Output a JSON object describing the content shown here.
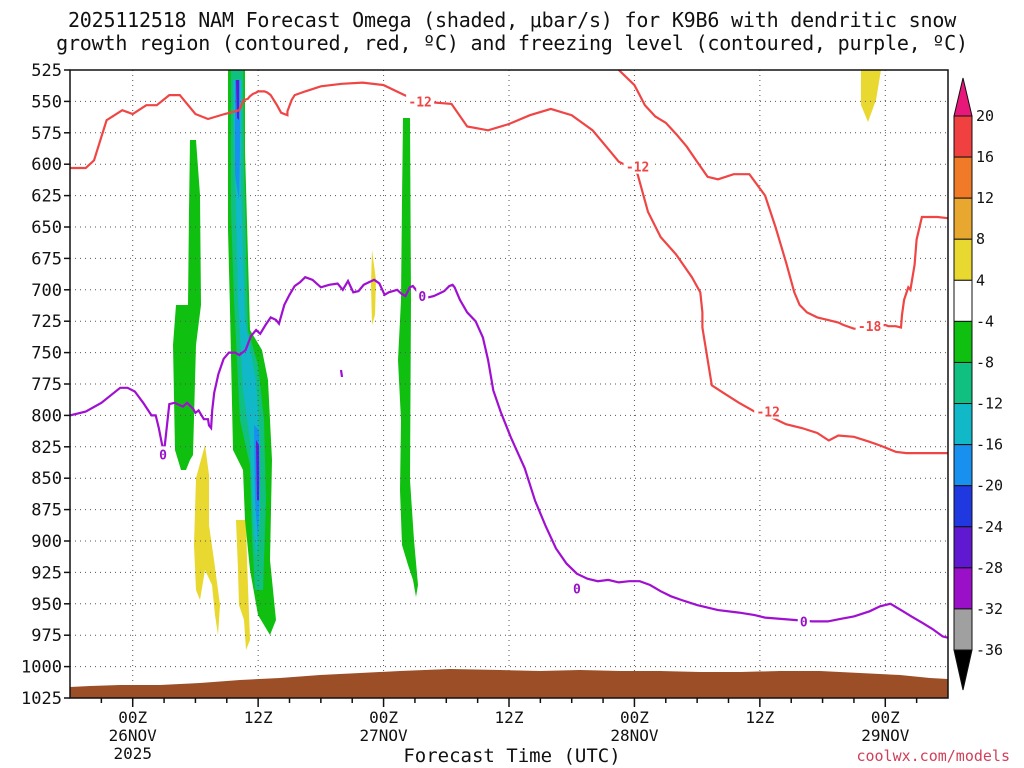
{
  "title_line1": "2025112518 NAM Forecast Omega (shaded, μbar/s) for K9B6 with dendritic snow",
  "title_line2": "growth region (contoured, red, ºC) and freezing level (contoured, purple, ºC)",
  "credit": "coolwx.com/models",
  "chart_data": {
    "type": "contour",
    "xlabel": "Forecast Time (UTC)",
    "ylabel": "",
    "x_range_hours_from_2025112518": [
      0,
      84
    ],
    "y_range_hPa": [
      525,
      1025
    ],
    "y_ticks": [
      "525",
      "550",
      "575",
      "600",
      "625",
      "650",
      "675",
      "700",
      "725",
      "750",
      "775",
      "800",
      "825",
      "850",
      "875",
      "900",
      "925",
      "950",
      "975",
      "1000",
      "1025"
    ],
    "x_ticks": [
      {
        "h": 6,
        "lines": [
          "00Z",
          "26NOV",
          "2025"
        ]
      },
      {
        "h": 18,
        "lines": [
          "12Z"
        ]
      },
      {
        "h": 30,
        "lines": [
          "00Z",
          "27NOV"
        ]
      },
      {
        "h": 42,
        "lines": [
          "12Z"
        ]
      },
      {
        "h": 54,
        "lines": [
          "00Z",
          "28NOV"
        ]
      },
      {
        "h": 66,
        "lines": [
          "12Z"
        ]
      },
      {
        "h": 78,
        "lines": [
          "00Z",
          "29NOV"
        ]
      }
    ],
    "colorbar": {
      "labels": [
        "20",
        "16",
        "12",
        "8",
        "4",
        "-4",
        "-8",
        "-12",
        "-16",
        "-20",
        "-24",
        "-28",
        "-32",
        "-36"
      ],
      "colors": [
        "#e8177a",
        "#f04040",
        "#f07a28",
        "#e8a830",
        "#e8d830",
        "#ffffff",
        "#10c010",
        "#10c080",
        "#10b8c8",
        "#1890f0",
        "#2038e0",
        "#6018d0",
        "#9a10c8",
        "#a0a0a0",
        "#000000"
      ]
    },
    "contour_labels": [
      {
        "text": "-12",
        "color": "#f04545",
        "h": 33.5,
        "p": 550
      },
      {
        "text": "-12",
        "color": "#f04545",
        "h": 54.3,
        "p": 602
      },
      {
        "text": "-18",
        "color": "#f04545",
        "h": 76.5,
        "p": 729
      },
      {
        "text": "-12",
        "color": "#f04545",
        "h": 66.8,
        "p": 797
      },
      {
        "text": "0",
        "color": "#9a10c8",
        "h": 33.7,
        "p": 705
      },
      {
        "text": "0",
        "color": "#9a10c8",
        "h": 8.9,
        "p": 831
      },
      {
        "text": "0",
        "color": "#9a10c8",
        "h": 48.5,
        "p": 938
      },
      {
        "text": "0",
        "color": "#9a10c8",
        "h": 70.2,
        "p": 964
      }
    ],
    "series": [
      {
        "name": "",
        "color": "#f04545",
        "points": [
          [
            0,
            603
          ],
          [
            1.5,
            603
          ],
          [
            2.3,
            597
          ],
          [
            3.5,
            565
          ],
          [
            5,
            557
          ],
          [
            6,
            560
          ],
          [
            7.3,
            553
          ],
          [
            8.3,
            553
          ],
          [
            9.5,
            545
          ],
          [
            10.5,
            545
          ],
          [
            12,
            560
          ],
          [
            13.2,
            564
          ],
          [
            14.8,
            560
          ],
          [
            16.2,
            557
          ],
          [
            16.6,
            549
          ],
          [
            17,
            548
          ],
          [
            17.2,
            546
          ],
          [
            17.5,
            544
          ],
          [
            17.8,
            543
          ],
          [
            18,
            542
          ],
          [
            18.3,
            542
          ],
          [
            18.6,
            542
          ],
          [
            18.9,
            543
          ],
          [
            19.2,
            545
          ],
          [
            19.5,
            549
          ],
          [
            19.8,
            553
          ],
          [
            20.2,
            559
          ],
          [
            20.5,
            560
          ],
          [
            20.8,
            561
          ],
          [
            20.8,
            558
          ],
          [
            21.2,
            549
          ],
          [
            21.5,
            545
          ],
          [
            22.5,
            542
          ],
          [
            24,
            538
          ],
          [
            26,
            536
          ],
          [
            28,
            535
          ],
          [
            30,
            537
          ],
          [
            32,
            545
          ],
          [
            33.5,
            550
          ],
          [
            36.5,
            552
          ],
          [
            38,
            570
          ],
          [
            40,
            573
          ],
          [
            42,
            568
          ],
          [
            44,
            561
          ],
          [
            46,
            556
          ],
          [
            48,
            561
          ],
          [
            50,
            573
          ],
          [
            51.5,
            588
          ],
          [
            52.5,
            598
          ],
          [
            53,
            600
          ],
          [
            54,
            604
          ],
          [
            54.3,
            608
          ],
          [
            55.3,
            638
          ],
          [
            56.5,
            658
          ],
          [
            58,
            672
          ],
          [
            59.5,
            690
          ],
          [
            60.3,
            702
          ],
          [
            60.5,
            718
          ],
          [
            60.5,
            730
          ],
          [
            61.4,
            776
          ],
          [
            62.5,
            782
          ],
          [
            64,
            790
          ],
          [
            65.5,
            797
          ],
          [
            67,
            801
          ],
          [
            68.5,
            807
          ],
          [
            70,
            810
          ],
          [
            71.5,
            814
          ],
          [
            72.6,
            820
          ],
          [
            73.5,
            816
          ],
          [
            75,
            817
          ],
          [
            76.5,
            821
          ],
          [
            77.5,
            824
          ],
          [
            79,
            829
          ],
          [
            80,
            830
          ],
          [
            82,
            830
          ],
          [
            84,
            830
          ]
        ]
      },
      {
        "name": "",
        "color": "#f04545",
        "points": [
          [
            52.5,
            525
          ],
          [
            54,
            537
          ],
          [
            54.5,
            545
          ],
          [
            55,
            553
          ],
          [
            56,
            562
          ],
          [
            57,
            567
          ],
          [
            58,
            576
          ],
          [
            59,
            586
          ],
          [
            60,
            598
          ],
          [
            61,
            610
          ],
          [
            62,
            612
          ],
          [
            63.5,
            608
          ],
          [
            65,
            608
          ],
          [
            66.5,
            625
          ],
          [
            67.5,
            650
          ],
          [
            68.5,
            678
          ],
          [
            69.3,
            702
          ],
          [
            69.8,
            712
          ],
          [
            70.5,
            718
          ],
          [
            71.5,
            722
          ],
          [
            72.5,
            724
          ],
          [
            73.5,
            726
          ],
          [
            74,
            728
          ],
          [
            75,
            731
          ],
          [
            75.5,
            731
          ],
          [
            76,
            730
          ],
          [
            78,
            728
          ],
          [
            78.3,
            729
          ],
          [
            79,
            729
          ],
          [
            79.5,
            730
          ],
          [
            79.6,
            720
          ],
          [
            79.8,
            708
          ],
          [
            80.2,
            698
          ],
          [
            80.4,
            700
          ],
          [
            80.8,
            680
          ],
          [
            81,
            660
          ],
          [
            81.5,
            642
          ],
          [
            83,
            642
          ],
          [
            84,
            643
          ]
        ]
      },
      {
        "name": "",
        "color": "#a010d0",
        "points": [
          [
            0,
            800
          ],
          [
            1.5,
            797
          ],
          [
            3,
            790
          ],
          [
            4.2,
            782
          ],
          [
            4.8,
            778
          ],
          [
            5.5,
            778
          ],
          [
            6.2,
            781
          ],
          [
            7,
            790
          ],
          [
            7.8,
            800
          ],
          [
            8.2,
            800
          ],
          [
            8.5,
            810
          ],
          [
            8.8,
            823
          ],
          [
            9,
            829
          ],
          [
            9.5,
            791
          ],
          [
            10,
            790
          ],
          [
            10.8,
            793
          ],
          [
            11.2,
            790
          ],
          [
            11.8,
            795
          ],
          [
            12,
            798
          ],
          [
            12.3,
            796
          ],
          [
            12.8,
            803
          ],
          [
            13.2,
            803
          ],
          [
            13.3,
            808
          ],
          [
            13.5,
            810
          ],
          [
            13.6,
            796
          ],
          [
            13.8,
            782
          ],
          [
            14.2,
            767
          ],
          [
            14.7,
            755
          ],
          [
            15.2,
            750
          ],
          [
            15.8,
            750
          ],
          [
            16.2,
            752
          ],
          [
            16.8,
            748
          ],
          [
            17.3,
            737
          ],
          [
            17.8,
            732
          ],
          [
            18.2,
            735
          ],
          [
            18.7,
            728
          ],
          [
            19.2,
            722
          ],
          [
            19.7,
            724
          ],
          [
            20,
            727
          ],
          [
            20.5,
            712
          ],
          [
            21,
            704
          ],
          [
            21.5,
            697
          ],
          [
            22,
            694
          ],
          [
            22.5,
            690
          ],
          [
            23.2,
            692
          ],
          [
            24,
            698
          ],
          [
            24.8,
            696
          ],
          [
            25.6,
            695
          ],
          [
            26.1,
            700
          ],
          [
            26.6,
            693
          ],
          [
            27.1,
            702
          ],
          [
            27.6,
            701
          ],
          [
            28.1,
            696
          ],
          [
            28.6,
            694
          ],
          [
            29.1,
            692
          ],
          [
            29.6,
            695
          ],
          [
            30.1,
            704
          ],
          [
            30.5,
            702
          ],
          [
            31.3,
            700
          ],
          [
            31.7,
            703
          ],
          [
            32.1,
            705
          ],
          [
            32.5,
            698
          ],
          [
            32.8,
            697
          ],
          [
            33,
            699
          ],
          [
            33.3,
            702
          ],
          [
            33.7,
            703
          ],
          [
            34.3,
            706
          ],
          [
            34.8,
            705
          ],
          [
            35.3,
            703
          ],
          [
            35.8,
            701
          ],
          [
            36.3,
            697
          ],
          [
            36.6,
            696
          ],
          [
            36.8,
            698
          ],
          [
            37.3,
            708
          ],
          [
            38,
            718
          ],
          [
            38.8,
            725
          ],
          [
            39.5,
            738
          ],
          [
            40,
            756
          ],
          [
            40.5,
            780
          ],
          [
            41.2,
            797
          ],
          [
            42.2,
            818
          ],
          [
            43.5,
            842
          ],
          [
            44.5,
            868
          ],
          [
            45.5,
            888
          ],
          [
            46.5,
            906
          ],
          [
            47.5,
            918
          ],
          [
            48.5,
            926
          ],
          [
            49.5,
            930
          ],
          [
            50.5,
            932
          ],
          [
            51.5,
            931
          ],
          [
            52.5,
            933
          ],
          [
            53.5,
            932
          ],
          [
            54.5,
            932
          ],
          [
            55.5,
            935
          ],
          [
            56.5,
            940
          ],
          [
            57.5,
            944
          ],
          [
            58.5,
            947
          ],
          [
            60,
            951
          ],
          [
            62,
            955
          ],
          [
            64,
            957
          ],
          [
            65.5,
            959
          ],
          [
            66.5,
            961
          ],
          [
            68,
            962
          ],
          [
            69.5,
            963
          ],
          [
            71,
            964
          ],
          [
            72.5,
            964
          ],
          [
            73.7,
            962
          ],
          [
            75,
            960
          ],
          [
            76.5,
            956
          ],
          [
            77.5,
            952
          ],
          [
            78.5,
            950
          ],
          [
            79.5,
            955
          ],
          [
            80.5,
            960
          ],
          [
            81.5,
            965
          ],
          [
            82.5,
            970
          ],
          [
            83.5,
            976
          ],
          [
            84,
            977
          ]
        ]
      }
    ]
  }
}
